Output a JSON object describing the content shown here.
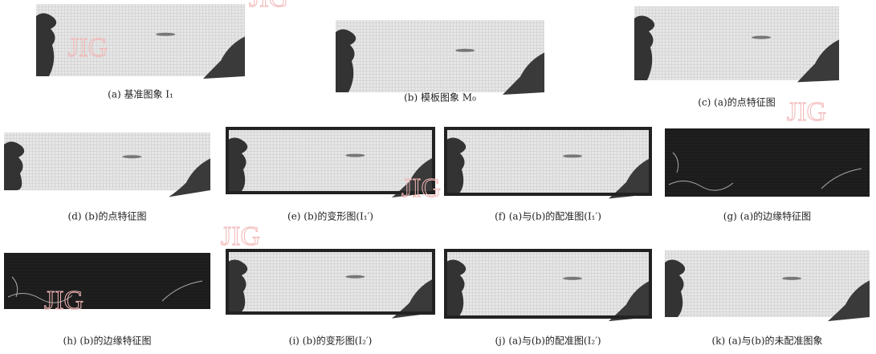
{
  "figure": {
    "watermark": "JIG",
    "panels": [
      {
        "caption": "(a) 基准图象 I₁"
      },
      {
        "caption": "(b) 模板图象 M₀"
      },
      {
        "caption": "(c) (a)的点特征图"
      },
      {
        "caption": "(d) (b)的点特征图"
      },
      {
        "caption": "(e) (b)的变形图(I₁′)"
      },
      {
        "caption": "(f) (a)与(b)的配准图(I₁′)"
      },
      {
        "caption": "(g) (a)的边缘特征图"
      },
      {
        "caption": "(h) (b)的边缘特征图"
      },
      {
        "caption": "(i) (b)的变形图(I₂′)"
      },
      {
        "caption": "(j) (a)与(b)的配准图(I₂′)"
      },
      {
        "caption": "(k) (a)与(b)的未配准图象"
      }
    ]
  }
}
